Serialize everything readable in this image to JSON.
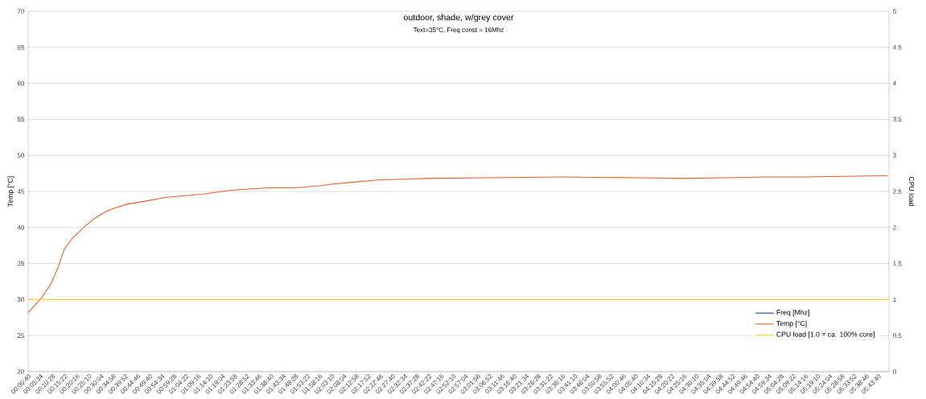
{
  "chart_data": {
    "type": "line",
    "title": "outdoor, shade, w/grey cover",
    "subtitle": "Text=35°C, Freq const = 16Mhz",
    "ylabel": "Temp [°C]",
    "y2label": "CPU load",
    "xlim": [
      0.0111,
      5.8
    ],
    "ylim": [
      20,
      70
    ],
    "y2lim": [
      0,
      5
    ],
    "yticks": [
      20,
      25,
      30,
      35,
      40,
      45,
      50,
      55,
      60,
      65,
      70
    ],
    "y2ticks": [
      0,
      0.5,
      1,
      1.5,
      2,
      2.5,
      3,
      3.5,
      4,
      4.5,
      5
    ],
    "xticks": [
      {
        "value": 0.0111,
        "label": "00:00:40"
      },
      {
        "value": 0.0928,
        "label": "00:05:34"
      },
      {
        "value": 0.1744,
        "label": "00:10:28"
      },
      {
        "value": 0.2561,
        "label": "00:15:22"
      },
      {
        "value": 0.3378,
        "label": "00:20:16"
      },
      {
        "value": 0.4194,
        "label": "00:25:10"
      },
      {
        "value": 0.5011,
        "label": "00:30:04"
      },
      {
        "value": 0.5828,
        "label": "00:34:58"
      },
      {
        "value": 0.6644,
        "label": "00:39:52"
      },
      {
        "value": 0.7461,
        "label": "00:44:46"
      },
      {
        "value": 0.8278,
        "label": "00:49:40"
      },
      {
        "value": 0.9094,
        "label": "00:54:34"
      },
      {
        "value": 0.9911,
        "label": "00:59:28"
      },
      {
        "value": 1.0728,
        "label": "01:04:22"
      },
      {
        "value": 1.1544,
        "label": "01:09:16"
      },
      {
        "value": 1.2361,
        "label": "01:14:10"
      },
      {
        "value": 1.3178,
        "label": "01:19:04"
      },
      {
        "value": 1.3994,
        "label": "01:23:58"
      },
      {
        "value": 1.4811,
        "label": "01:28:52"
      },
      {
        "value": 1.5628,
        "label": "01:33:46"
      },
      {
        "value": 1.6444,
        "label": "01:38:40"
      },
      {
        "value": 1.7261,
        "label": "01:43:34"
      },
      {
        "value": 1.8078,
        "label": "01:48:28"
      },
      {
        "value": 1.8894,
        "label": "01:53:22"
      },
      {
        "value": 1.9711,
        "label": "01:58:16"
      },
      {
        "value": 2.0528,
        "label": "02:03:10"
      },
      {
        "value": 2.1344,
        "label": "02:08:04"
      },
      {
        "value": 2.2161,
        "label": "02:12:58"
      },
      {
        "value": 2.2978,
        "label": "02:17:52"
      },
      {
        "value": 2.3794,
        "label": "02:22:46"
      },
      {
        "value": 2.4611,
        "label": "02:27:40"
      },
      {
        "value": 2.5428,
        "label": "02:32:34"
      },
      {
        "value": 2.6244,
        "label": "02:37:28"
      },
      {
        "value": 2.7061,
        "label": "02:42:22"
      },
      {
        "value": 2.7878,
        "label": "02:47:16"
      },
      {
        "value": 2.8694,
        "label": "02:52:10"
      },
      {
        "value": 2.9511,
        "label": "02:57:04"
      },
      {
        "value": 3.0328,
        "label": "03:01:58"
      },
      {
        "value": 3.1144,
        "label": "03:06:52"
      },
      {
        "value": 3.1961,
        "label": "03:11:46"
      },
      {
        "value": 3.2778,
        "label": "03:16:40"
      },
      {
        "value": 3.3594,
        "label": "03:21:34"
      },
      {
        "value": 3.4411,
        "label": "03:26:28"
      },
      {
        "value": 3.5228,
        "label": "03:31:22"
      },
      {
        "value": 3.6044,
        "label": "03:36:16"
      },
      {
        "value": 3.6861,
        "label": "03:41:10"
      },
      {
        "value": 3.7678,
        "label": "03:46:04"
      },
      {
        "value": 3.8494,
        "label": "03:50:58"
      },
      {
        "value": 3.9311,
        "label": "03:55:52"
      },
      {
        "value": 4.0128,
        "label": "04:00:46"
      },
      {
        "value": 4.0944,
        "label": "04:05:40"
      },
      {
        "value": 4.1761,
        "label": "04:10:34"
      },
      {
        "value": 4.2578,
        "label": "04:15:28"
      },
      {
        "value": 4.3394,
        "label": "04:20:22"
      },
      {
        "value": 4.4211,
        "label": "04:25:16"
      },
      {
        "value": 4.5028,
        "label": "04:30:10"
      },
      {
        "value": 4.5844,
        "label": "04:35:04"
      },
      {
        "value": 4.6661,
        "label": "04:39:58"
      },
      {
        "value": 4.7478,
        "label": "04:44:52"
      },
      {
        "value": 4.8294,
        "label": "04:49:46"
      },
      {
        "value": 4.9111,
        "label": "04:54:40"
      },
      {
        "value": 4.9928,
        "label": "04:59:34"
      },
      {
        "value": 5.0744,
        "label": "05:04:28"
      },
      {
        "value": 5.1561,
        "label": "05:09:22"
      },
      {
        "value": 5.2378,
        "label": "05:14:16"
      },
      {
        "value": 5.3194,
        "label": "05:19:10"
      },
      {
        "value": 5.4011,
        "label": "05:24:04"
      },
      {
        "value": 5.4828,
        "label": "05:28:58"
      },
      {
        "value": 5.5644,
        "label": "05:33:52"
      },
      {
        "value": 5.6461,
        "label": "05:38:46"
      },
      {
        "value": 5.7278,
        "label": "05:43:40"
      }
    ],
    "grid": "y",
    "legend": "bottom right",
    "series": [
      {
        "name": "Freq [Mhz]",
        "color": "#004586"
      },
      {
        "name": "Temp [°C]",
        "color": "#e8602c",
        "x": [
          0.0111,
          0.0543,
          0.0922,
          0.1624,
          0.2111,
          0.2543,
          0.3084,
          0.4003,
          0.4543,
          0.5408,
          0.5949,
          0.6706,
          0.8111,
          0.9408,
          1.1733,
          1.3895,
          1.6219,
          1.8057,
          1.9841,
          2.049,
          2.2003,
          2.3625,
          2.6868,
          3.0651,
          3.6057,
          4.1462,
          4.4165,
          4.6868,
          4.957,
          5.2273,
          5.4976,
          5.7895
        ],
        "values": [
          28.2,
          29.2,
          30.0,
          32.1,
          34.4,
          37.0,
          38.5,
          40.3,
          41.2,
          42.3,
          42.7,
          43.2,
          43.7,
          44.2,
          44.6,
          45.2,
          45.5,
          45.5,
          45.8,
          46.0,
          46.3,
          46.6,
          46.8,
          46.9,
          47.0,
          46.9,
          46.8,
          46.9,
          47.0,
          47.0,
          47.1,
          47.2
        ]
      },
      {
        "name": "CPU load [1.0 = ca. 100% core]",
        "color": "#ffd320",
        "axis": "y2",
        "x": [
          0.0111,
          5.8
        ],
        "values": [
          1,
          1
        ]
      }
    ]
  }
}
